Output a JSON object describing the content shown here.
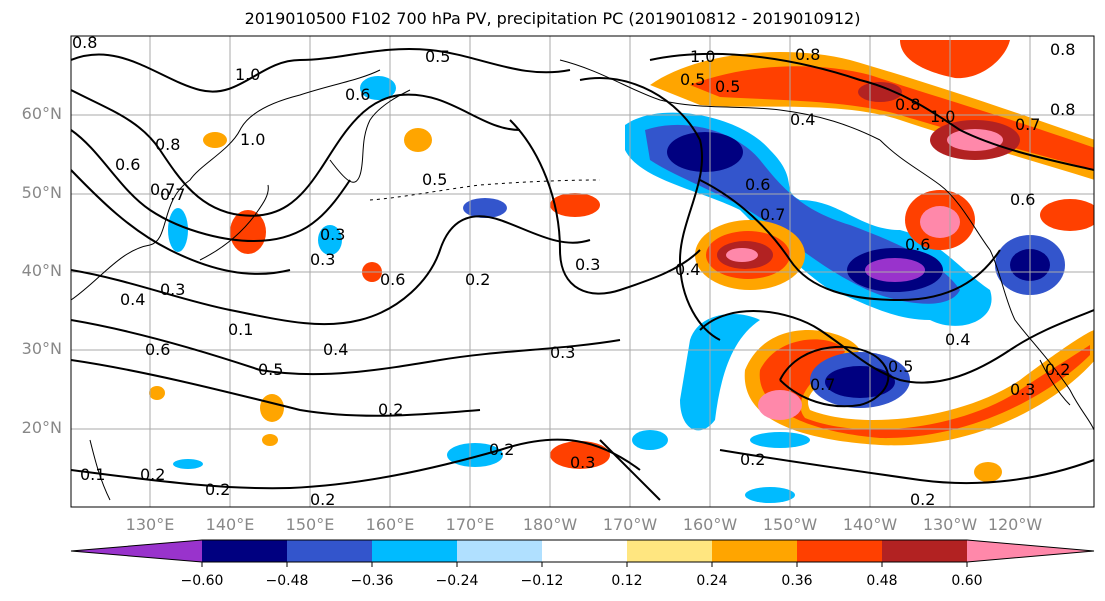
{
  "figure": {
    "title": "2019010500 F102 700 hPa PV, precipitation PC (2019010812 - 2019010912)"
  },
  "axes": {
    "lat_labels": [
      "60°N",
      "50°N",
      "40°N",
      "30°N",
      "20°N"
    ],
    "lon_labels": [
      "130°E",
      "140°E",
      "150°E",
      "160°E",
      "170°E",
      "180°W",
      "170°W",
      "160°W",
      "150°W",
      "140°W",
      "130°W",
      "120°W"
    ]
  },
  "colorbar": {
    "colors": [
      "#9933cc",
      "#000080",
      "#3355cc",
      "#00bbff",
      "#b0e0ff",
      "#ffffff",
      "#ffe680",
      "#ffa500",
      "#ff4000",
      "#b22222",
      "#ff88aa"
    ],
    "tick_labels": [
      "−0.60",
      "−0.48",
      "−0.36",
      "−0.24",
      "−0.12",
      "0.12",
      "0.24",
      "0.36",
      "0.48",
      "0.60"
    ]
  },
  "contour_labels": [
    "0.8",
    "0.5",
    "1.0",
    "0.6",
    "0.8",
    "1.0",
    "0.5",
    "0.8",
    "1.0",
    "0.6",
    "0.7",
    "0.5",
    "0.5",
    "0.6",
    "0.4",
    "0.7",
    "0.6",
    "0.8",
    "0.8",
    "1.0",
    "0.7",
    "0.8",
    "0.6",
    "0.3",
    "0.3",
    "0.2",
    "0.3",
    "0.4",
    "0.6",
    "0.4",
    "0.3",
    "0.6",
    "0.1",
    "0.5",
    "0.4",
    "0.3",
    "0.2",
    "0.7",
    "0.5",
    "0.4",
    "0.3",
    "0.2",
    "0.2",
    "0.3",
    "0.2",
    "0.2",
    "0.2",
    "0.2",
    "0.7",
    "0.1",
    "0.2"
  ]
}
